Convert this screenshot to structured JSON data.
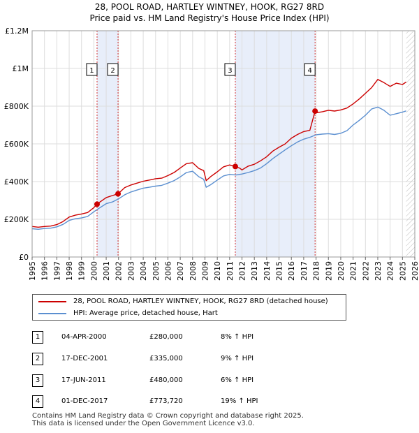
{
  "header": {
    "title_line1": "28, POOL ROAD, HARTLEY WINTNEY, HOOK, RG27 8RD",
    "title_line2": "Price paid vs. HM Land Registry's House Price Index (HPI)"
  },
  "colors": {
    "property": "#cc0000",
    "hpi": "#5b8fd0",
    "band": "#e8eefa",
    "grid": "#dddddd",
    "marker": "#cc0000"
  },
  "chart_data": {
    "type": "line",
    "ylim": [
      0,
      1200000
    ],
    "xlim": [
      1995,
      2026
    ],
    "y_ticks": [
      {
        "value": 0,
        "label": "£0"
      },
      {
        "value": 200000,
        "label": "£200K"
      },
      {
        "value": 400000,
        "label": "£400K"
      },
      {
        "value": 600000,
        "label": "£600K"
      },
      {
        "value": 800000,
        "label": "£800K"
      },
      {
        "value": 1000000,
        "label": "£1M"
      },
      {
        "value": 1200000,
        "label": "£1.2M"
      }
    ],
    "x_ticks": [
      "1995",
      "1996",
      "1997",
      "1998",
      "1999",
      "2000",
      "2001",
      "2002",
      "2003",
      "2004",
      "2005",
      "2006",
      "2007",
      "2008",
      "2009",
      "2010",
      "2011",
      "2012",
      "2013",
      "2014",
      "2015",
      "2016",
      "2017",
      "2018",
      "2019",
      "2020",
      "2021",
      "2022",
      "2023",
      "2024",
      "2025",
      "2026"
    ],
    "series": [
      {
        "name": "28, POOL ROAD, HARTLEY WINTNEY, HOOK, RG27 8RD (detached house)",
        "color": "#cc0000",
        "x": [
          1995.0,
          1995.5,
          1996.0,
          1996.5,
          1997.0,
          1997.5,
          1998.0,
          1998.5,
          1999.0,
          1999.5,
          2000.0,
          2000.26,
          2000.5,
          2001.0,
          2001.5,
          2001.96,
          2002.5,
          2003.0,
          2003.5,
          2004.0,
          2004.5,
          2005.0,
          2005.5,
          2006.0,
          2006.5,
          2007.0,
          2007.5,
          2008.0,
          2008.5,
          2008.9,
          2009.1,
          2009.5,
          2010.0,
          2010.5,
          2011.0,
          2011.46,
          2011.8,
          2012.0,
          2012.5,
          2013.0,
          2013.5,
          2014.0,
          2014.5,
          2015.0,
          2015.5,
          2016.0,
          2016.5,
          2017.0,
          2017.5,
          2017.92,
          2018.0,
          2018.5,
          2019.0,
          2019.5,
          2020.0,
          2020.5,
          2021.0,
          2021.5,
          2022.0,
          2022.5,
          2023.0,
          2023.5,
          2024.0,
          2024.5,
          2025.0,
          2025.3
        ],
        "values": [
          162000,
          158000,
          162000,
          164000,
          172000,
          188000,
          212000,
          222000,
          228000,
          236000,
          262000,
          280000,
          292000,
          315000,
          326000,
          335000,
          368000,
          382000,
          392000,
          402000,
          408000,
          415000,
          418000,
          432000,
          448000,
          472000,
          495000,
          500000,
          470000,
          458000,
          405000,
          428000,
          452000,
          478000,
          488000,
          480000,
          472000,
          462000,
          482000,
          492000,
          510000,
          532000,
          562000,
          582000,
          600000,
          630000,
          650000,
          665000,
          672000,
          773720,
          765000,
          770000,
          778000,
          774000,
          780000,
          790000,
          812000,
          838000,
          868000,
          898000,
          942000,
          925000,
          905000,
          922000,
          915000,
          928000
        ]
      },
      {
        "name": "HPI: Average price, detached house, Hart",
        "color": "#5b8fd0",
        "x": [
          1995.0,
          1995.5,
          1996.0,
          1996.5,
          1997.0,
          1997.5,
          1998.0,
          1998.5,
          1999.0,
          1999.5,
          2000.0,
          2000.5,
          2001.0,
          2001.5,
          2002.0,
          2002.5,
          2003.0,
          2003.5,
          2004.0,
          2004.5,
          2005.0,
          2005.5,
          2006.0,
          2006.5,
          2007.0,
          2007.5,
          2008.0,
          2008.5,
          2008.9,
          2009.1,
          2009.5,
          2010.0,
          2010.5,
          2011.0,
          2011.5,
          2012.0,
          2012.5,
          2013.0,
          2013.5,
          2014.0,
          2014.5,
          2015.0,
          2015.5,
          2016.0,
          2016.5,
          2017.0,
          2017.5,
          2018.0,
          2018.5,
          2019.0,
          2019.5,
          2020.0,
          2020.5,
          2021.0,
          2021.5,
          2022.0,
          2022.5,
          2023.0,
          2023.5,
          2024.0,
          2024.5,
          2025.0,
          2025.3
        ],
        "values": [
          150000,
          147000,
          151000,
          153000,
          160000,
          173000,
          194000,
          203000,
          207000,
          215000,
          240000,
          262000,
          283000,
          292000,
          308000,
          330000,
          345000,
          355000,
          365000,
          370000,
          376000,
          380000,
          392000,
          405000,
          425000,
          448000,
          455000,
          426000,
          412000,
          370000,
          385000,
          408000,
          430000,
          438000,
          435000,
          440000,
          448000,
          458000,
          472000,
          495000,
          522000,
          545000,
          568000,
          590000,
          610000,
          625000,
          635000,
          648000,
          652000,
          654000,
          650000,
          656000,
          670000,
          700000,
          725000,
          752000,
          785000,
          795000,
          778000,
          752000,
          760000,
          768000,
          775000
        ]
      }
    ],
    "transactions": [
      {
        "num": "1",
        "x": 2000.26,
        "value": 280000,
        "date": "04-APR-2000",
        "price": "£280,000",
        "hpi": "8% ↑ HPI"
      },
      {
        "num": "2",
        "x": 2001.96,
        "value": 335000,
        "date": "17-DEC-2001",
        "price": "£335,000",
        "hpi": "9% ↑ HPI"
      },
      {
        "num": "3",
        "x": 2011.46,
        "value": 480000,
        "date": "17-JUN-2011",
        "price": "£480,000",
        "hpi": "6% ↑ HPI"
      },
      {
        "num": "4",
        "x": 2017.92,
        "value": 773720,
        "date": "01-DEC-2017",
        "price": "£773,720",
        "hpi": "19% ↑ HPI"
      }
    ],
    "bands": [
      [
        2000.26,
        2001.96
      ],
      [
        2011.46,
        2017.92
      ]
    ],
    "future_hatch_from": 2025.3
  },
  "legend": {
    "property_label": "28, POOL ROAD, HARTLEY WINTNEY, HOOK, RG27 8RD (detached house)",
    "hpi_label": "HPI: Average price, detached house, Hart"
  },
  "footer": {
    "line1": "Contains HM Land Registry data © Crown copyright and database right 2025.",
    "line2": "This data is licensed under the Open Government Licence v3.0."
  }
}
